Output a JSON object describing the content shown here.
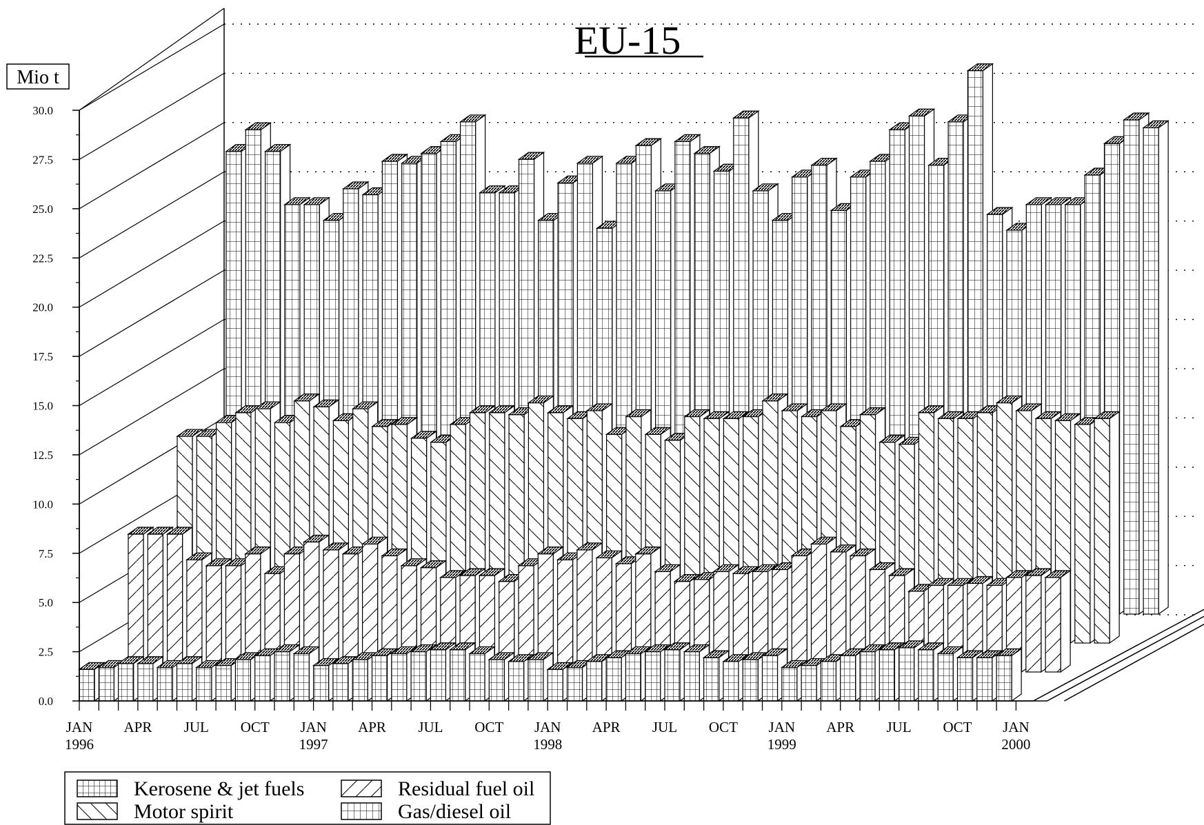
{
  "chart_data": {
    "type": "bar",
    "title": "EU-15",
    "ylabel": "Mio t",
    "xlabel": "",
    "ylim": [
      0,
      30
    ],
    "yticks": [
      "0.0",
      "2.5",
      "5.0",
      "7.5",
      "10.0",
      "12.5",
      "15.0",
      "17.5",
      "20.0",
      "22.5",
      "25.0",
      "27.5",
      "30.0"
    ],
    "x_tick_labels": [
      {
        "label": "JAN",
        "sub": "1996",
        "month_index": 0
      },
      {
        "label": "APR",
        "sub": "",
        "month_index": 3
      },
      {
        "label": "JUL",
        "sub": "",
        "month_index": 6
      },
      {
        "label": "OCT",
        "sub": "",
        "month_index": 9
      },
      {
        "label": "JAN",
        "sub": "1997",
        "month_index": 12
      },
      {
        "label": "APR",
        "sub": "",
        "month_index": 15
      },
      {
        "label": "JUL",
        "sub": "",
        "month_index": 18
      },
      {
        "label": "OCT",
        "sub": "",
        "month_index": 21
      },
      {
        "label": "JAN",
        "sub": "1998",
        "month_index": 24
      },
      {
        "label": "APR",
        "sub": "",
        "month_index": 27
      },
      {
        "label": "JUL",
        "sub": "",
        "month_index": 30
      },
      {
        "label": "OCT",
        "sub": "",
        "month_index": 33
      },
      {
        "label": "JAN",
        "sub": "1999",
        "month_index": 36
      },
      {
        "label": "APR",
        "sub": "",
        "month_index": 39
      },
      {
        "label": "JUL",
        "sub": "",
        "month_index": 42
      },
      {
        "label": "OCT",
        "sub": "",
        "month_index": 45
      },
      {
        "label": "JAN",
        "sub": "2000",
        "month_index": 48
      }
    ],
    "grid": "dotted-back-wall",
    "legend_position": "bottom-left",
    "series": [
      {
        "name": "Gas/diesel oil",
        "pattern": "grid",
        "values": [
          23.5,
          24.6,
          23.5,
          20.8,
          20.8,
          20.0,
          21.6,
          21.3,
          23.0,
          22.9,
          23.4,
          24.0,
          25.0,
          21.4,
          21.4,
          23.1,
          20.0,
          21.9,
          22.9,
          19.6,
          22.9,
          23.8,
          21.5,
          24.0,
          23.4,
          22.5,
          25.2,
          21.5,
          20.0,
          22.2,
          22.8,
          20.5,
          22.2,
          23.0,
          24.6,
          25.3,
          22.8,
          25.0,
          27.6,
          20.3,
          19.5,
          20.8,
          20.8,
          20.8,
          22.3,
          23.9,
          25.1,
          24.7
        ]
      },
      {
        "name": "Motor spirit",
        "pattern": "back-diagonal",
        "values": [
          10.5,
          10.5,
          11.2,
          11.7,
          11.9,
          11.2,
          12.3,
          12.0,
          11.3,
          11.9,
          11.0,
          11.1,
          10.4,
          10.2,
          11.1,
          11.7,
          11.7,
          11.6,
          12.2,
          11.7,
          11.4,
          11.8,
          10.6,
          11.5,
          10.6,
          10.3,
          11.5,
          11.4,
          11.4,
          11.5,
          12.3,
          11.8,
          11.5,
          11.8,
          11.0,
          11.6,
          10.2,
          10.1,
          11.7,
          11.4,
          11.4,
          11.7,
          12.2,
          11.8,
          11.4,
          11.3,
          11.1,
          11.4
        ]
      },
      {
        "name": "Residual fuel oil",
        "pattern": "diagonal",
        "values": [
          7.0,
          7.0,
          7.0,
          5.7,
          5.4,
          5.4,
          6.0,
          5.0,
          6.0,
          6.6,
          6.2,
          6.0,
          6.5,
          5.9,
          5.4,
          5.3,
          4.8,
          4.9,
          4.9,
          4.6,
          5.4,
          6.0,
          5.7,
          6.2,
          5.8,
          5.5,
          6.0,
          5.1,
          4.6,
          4.7,
          5.1,
          5.0,
          5.1,
          5.2,
          5.9,
          6.5,
          6.1,
          5.9,
          5.2,
          4.9,
          4.1,
          4.4,
          4.4,
          4.5,
          4.4,
          4.8,
          4.9,
          4.8
        ]
      },
      {
        "name": "Kerosene & jet fuels",
        "pattern": "brick",
        "values": [
          1.6,
          1.7,
          1.9,
          1.9,
          1.7,
          1.9,
          1.7,
          1.8,
          2.1,
          2.3,
          2.5,
          2.4,
          1.8,
          1.9,
          2.1,
          2.3,
          2.4,
          2.5,
          2.6,
          2.6,
          2.4,
          2.1,
          2.0,
          2.1,
          1.6,
          1.7,
          2.0,
          2.2,
          2.4,
          2.5,
          2.6,
          2.5,
          2.2,
          2.0,
          2.1,
          2.3,
          1.7,
          1.8,
          2.0,
          2.3,
          2.5,
          2.6,
          2.7,
          2.6,
          2.4,
          2.2,
          2.2,
          2.3
        ]
      }
    ],
    "legend": [
      {
        "label": "Kerosene & jet fuels",
        "pattern": "brick"
      },
      {
        "label": "Residual fuel oil",
        "pattern": "diagonal"
      },
      {
        "label": "Motor spirit",
        "pattern": "back-diagonal"
      },
      {
        "label": "Gas/diesel oil",
        "pattern": "grid"
      }
    ]
  }
}
